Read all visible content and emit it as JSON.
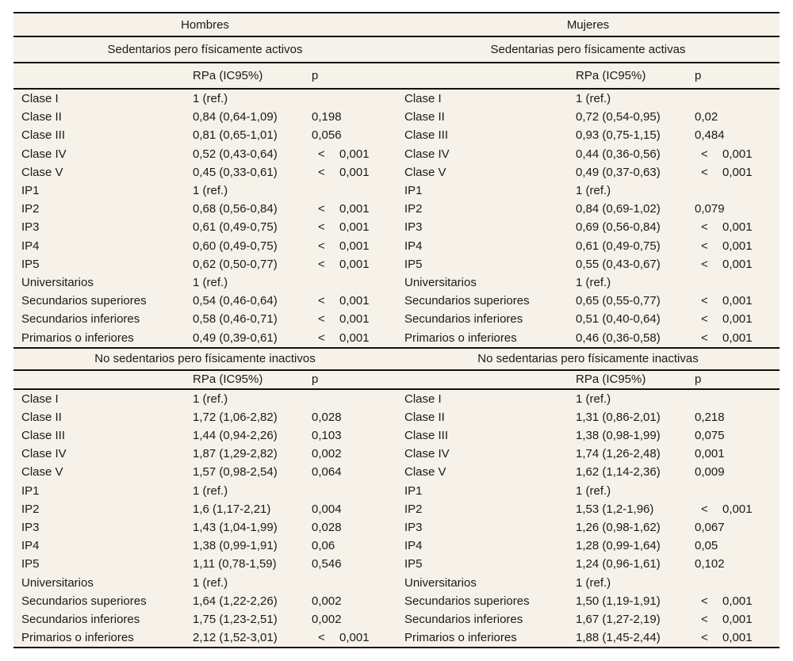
{
  "genders": [
    "Hombres",
    "Mujeres"
  ],
  "columns": {
    "rpa": "RPa (IC95%)",
    "p": "p"
  },
  "colors": {
    "table_bg": "#f6f2e9",
    "rule": "#101010",
    "text": "#1a1a1a"
  },
  "sections": [
    {
      "titles": [
        "Sedentarios pero físicamente activos",
        "Sedentarias pero físicamente activas"
      ],
      "rows": [
        {
          "left": {
            "label": "Clase I",
            "rpa": "1 (ref.)",
            "p": ""
          },
          "right": {
            "label": "Clase I",
            "rpa": "1 (ref.)",
            "p": ""
          }
        },
        {
          "left": {
            "label": "Clase II",
            "rpa": "0,84 (0,64-1,09)",
            "p": "0,198"
          },
          "right": {
            "label": "Clase II",
            "rpa": "0,72 (0,54-0,95)",
            "p": "0,02"
          }
        },
        {
          "left": {
            "label": "Clase III",
            "rpa": "0,81 (0,65-1,01)",
            "p": "0,056"
          },
          "right": {
            "label": "Clase III",
            "rpa": "0,93 (0,75-1,15)",
            "p": "0,484"
          }
        },
        {
          "left": {
            "label": "Clase IV",
            "rpa": "0,52 (0,43-0,64)",
            "p": "< 0,001"
          },
          "right": {
            "label": "Clase IV",
            "rpa": "0,44 (0,36-0,56)",
            "p": "< 0,001"
          }
        },
        {
          "left": {
            "label": "Clase V",
            "rpa": "0,45 (0,33-0,61)",
            "p": "< 0,001"
          },
          "right": {
            "label": "Clase V",
            "rpa": "0,49 (0,37-0,63)",
            "p": "< 0,001"
          }
        },
        {
          "left": {
            "label": "IP1",
            "rpa": "1 (ref.)",
            "p": ""
          },
          "right": {
            "label": "IP1",
            "rpa": "1 (ref.)",
            "p": ""
          }
        },
        {
          "left": {
            "label": "IP2",
            "rpa": "0,68 (0,56-0,84)",
            "p": "< 0,001"
          },
          "right": {
            "label": "IP2",
            "rpa": "0,84 (0,69-1,02)",
            "p": "0,079"
          }
        },
        {
          "left": {
            "label": "IP3",
            "rpa": "0,61 (0,49-0,75)",
            "p": "< 0,001"
          },
          "right": {
            "label": "IP3",
            "rpa": "0,69 (0,56-0,84)",
            "p": "< 0,001"
          }
        },
        {
          "left": {
            "label": "IP4",
            "rpa": "0,60 (0,49-0,75)",
            "p": "< 0,001"
          },
          "right": {
            "label": "IP4",
            "rpa": "0,61 (0,49-0,75)",
            "p": "< 0,001"
          }
        },
        {
          "left": {
            "label": "IP5",
            "rpa": "0,62 (0,50-0,77)",
            "p": "< 0,001"
          },
          "right": {
            "label": "IP5",
            "rpa": "0,55 (0,43-0,67)",
            "p": "< 0,001"
          }
        },
        {
          "left": {
            "label": "Universitarios",
            "rpa": "1 (ref.)",
            "p": ""
          },
          "right": {
            "label": "Universitarios",
            "rpa": "1 (ref.)",
            "p": ""
          }
        },
        {
          "left": {
            "label": "Secundarios superiores",
            "rpa": "0,54 (0,46-0,64)",
            "p": "< 0,001"
          },
          "right": {
            "label": "Secundarios superiores",
            "rpa": "0,65 (0,55-0,77)",
            "p": "< 0,001"
          }
        },
        {
          "left": {
            "label": "Secundarios inferiores",
            "rpa": "0,58 (0,46-0,71)",
            "p": "< 0,001"
          },
          "right": {
            "label": "Secundarios inferiores",
            "rpa": "0,51 (0,40-0,64)",
            "p": "< 0,001"
          }
        },
        {
          "left": {
            "label": "Primarios o inferiores",
            "rpa": "0,49 (0,39-0,61)",
            "p": "< 0,001"
          },
          "right": {
            "label": "Primarios o inferiores",
            "rpa": "0,46 (0,36-0,58)",
            "p": "< 0,001"
          }
        }
      ]
    },
    {
      "titles": [
        "No sedentarios pero físicamente inactivos",
        "No sedentarias pero físicamente inactivas"
      ],
      "rows": [
        {
          "left": {
            "label": "Clase I",
            "rpa": "1 (ref.)",
            "p": ""
          },
          "right": {
            "label": "Clase I",
            "rpa": "1 (ref.)",
            "p": ""
          }
        },
        {
          "left": {
            "label": "Clase II",
            "rpa": "1,72 (1,06-2,82)",
            "p": "0,028"
          },
          "right": {
            "label": "Clase II",
            "rpa": "1,31 (0,86-2,01)",
            "p": "0,218"
          }
        },
        {
          "left": {
            "label": "Clase III",
            "rpa": "1,44 (0,94-2,26)",
            "p": "0,103"
          },
          "right": {
            "label": "Clase III",
            "rpa": "1,38 (0,98-1,99)",
            "p": "0,075"
          }
        },
        {
          "left": {
            "label": "Clase IV",
            "rpa": "1,87 (1,29-2,82)",
            "p": "0,002"
          },
          "right": {
            "label": "Clase IV",
            "rpa": "1,74 (1,26-2,48)",
            "p": "0,001"
          }
        },
        {
          "left": {
            "label": "Clase V",
            "rpa": "1,57 (0,98-2,54)",
            "p": "0,064"
          },
          "right": {
            "label": "Clase V",
            "rpa": "1,62 (1,14-2,36)",
            "p": "0,009"
          }
        },
        {
          "left": {
            "label": "IP1",
            "rpa": "1 (ref.)",
            "p": ""
          },
          "right": {
            "label": "IP1",
            "rpa": "1 (ref.)",
            "p": ""
          }
        },
        {
          "left": {
            "label": "IP2",
            "rpa": "1,6 (1,17-2,21)",
            "p": "0,004"
          },
          "right": {
            "label": "IP2",
            "rpa": "1,53 (1,2-1,96)",
            "p": "< 0,001"
          }
        },
        {
          "left": {
            "label": "IP3",
            "rpa": "1,43 (1,04-1,99)",
            "p": "0,028"
          },
          "right": {
            "label": "IP3",
            "rpa": "1,26 (0,98-1,62)",
            "p": "0,067"
          }
        },
        {
          "left": {
            "label": "IP4",
            "rpa": "1,38 (0,99-1,91)",
            "p": "0,06"
          },
          "right": {
            "label": "IP4",
            "rpa": "1,28 (0,99-1,64)",
            "p": "0,05"
          }
        },
        {
          "left": {
            "label": "IP5",
            "rpa": "1,11 (0,78-1,59)",
            "p": "0,546"
          },
          "right": {
            "label": "IP5",
            "rpa": "1,24 (0,96-1,61)",
            "p": "0,102"
          }
        },
        {
          "left": {
            "label": "Universitarios",
            "rpa": "1 (ref.)",
            "p": ""
          },
          "right": {
            "label": "Universitarios",
            "rpa": "1 (ref.)",
            "p": ""
          }
        },
        {
          "left": {
            "label": "Secundarios superiores",
            "rpa": "1,64 (1,22-2,26)",
            "p": "0,002"
          },
          "right": {
            "label": "Secundarios superiores",
            "rpa": "1,50 (1,19-1,91)",
            "p": "< 0,001"
          }
        },
        {
          "left": {
            "label": "Secundarios inferiores",
            "rpa": "1,75 (1,23-2,51)",
            "p": "0,002"
          },
          "right": {
            "label": "Secundarios inferiores",
            "rpa": "1,67 (1,27-2,19)",
            "p": "< 0,001"
          }
        },
        {
          "left": {
            "label": "Primarios o inferiores",
            "rpa": "2,12 (1,52-3,01)",
            "p": "< 0,001"
          },
          "right": {
            "label": "Primarios o inferiores",
            "rpa": "1,88 (1,45-2,44)",
            "p": "< 0,001"
          }
        }
      ]
    }
  ]
}
